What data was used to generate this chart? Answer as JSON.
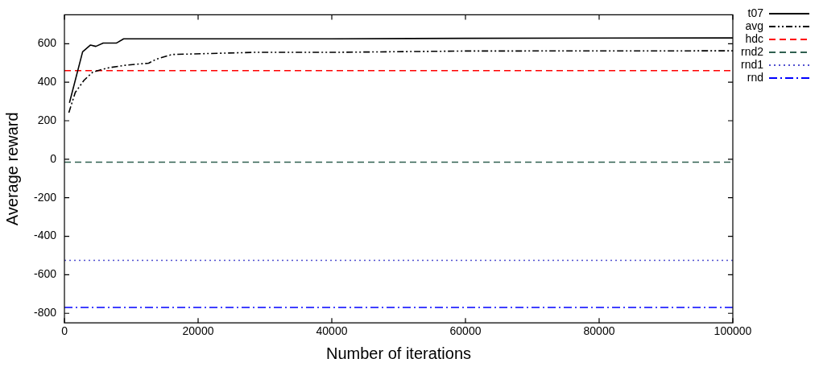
{
  "chart_data": {
    "type": "line",
    "xlabel": "Number of iterations",
    "ylabel": "Average reward",
    "xlim": [
      0,
      100000
    ],
    "xticks": [
      0,
      20000,
      40000,
      60000,
      80000,
      100000
    ],
    "ylim": [
      -850,
      750
    ],
    "yticks": [
      -800,
      -600,
      -400,
      -200,
      0,
      200,
      400,
      600
    ],
    "grid": false,
    "legend": "top right",
    "marker": "none",
    "series": [
      {
        "name": "t07",
        "color": "#000000",
        "line_style": "solid",
        "x": [
          750,
          2720,
          3900,
          4700,
          5800,
          7760,
          8860,
          40000,
          60000,
          100000
        ],
        "values": [
          293,
          558,
          593,
          586,
          603,
          603,
          625,
          625,
          628,
          630
        ]
      },
      {
        "name": "avg",
        "color": "#000000",
        "line_style": "dashdotdot",
        "x": [
          660,
          1620,
          2930,
          4250,
          6450,
          9080,
          12600,
          13700,
          16100,
          28400,
          40000,
          60000,
          100000
        ],
        "values": [
          242,
          347,
          410,
          453,
          474,
          488,
          499,
          519,
          544,
          555,
          555,
          562,
          563
        ]
      },
      {
        "name": "hdc",
        "color": "#ff0000",
        "line_style": "dashed",
        "x": [
          0,
          100000
        ],
        "values": [
          460,
          460
        ]
      },
      {
        "name": "rnd2",
        "color": "#2f5f4f",
        "line_style": "dashed",
        "x": [
          0,
          100000
        ],
        "values": [
          -15,
          -15
        ]
      },
      {
        "name": "rnd1",
        "color": "#5050d0",
        "line_style": "dotted",
        "x": [
          0,
          100000
        ],
        "values": [
          -525,
          -525
        ]
      },
      {
        "name": "rnd",
        "color": "#0000ff",
        "line_style": "dashdot",
        "x": [
          0,
          100000
        ],
        "values": [
          -770,
          -770
        ]
      }
    ]
  }
}
